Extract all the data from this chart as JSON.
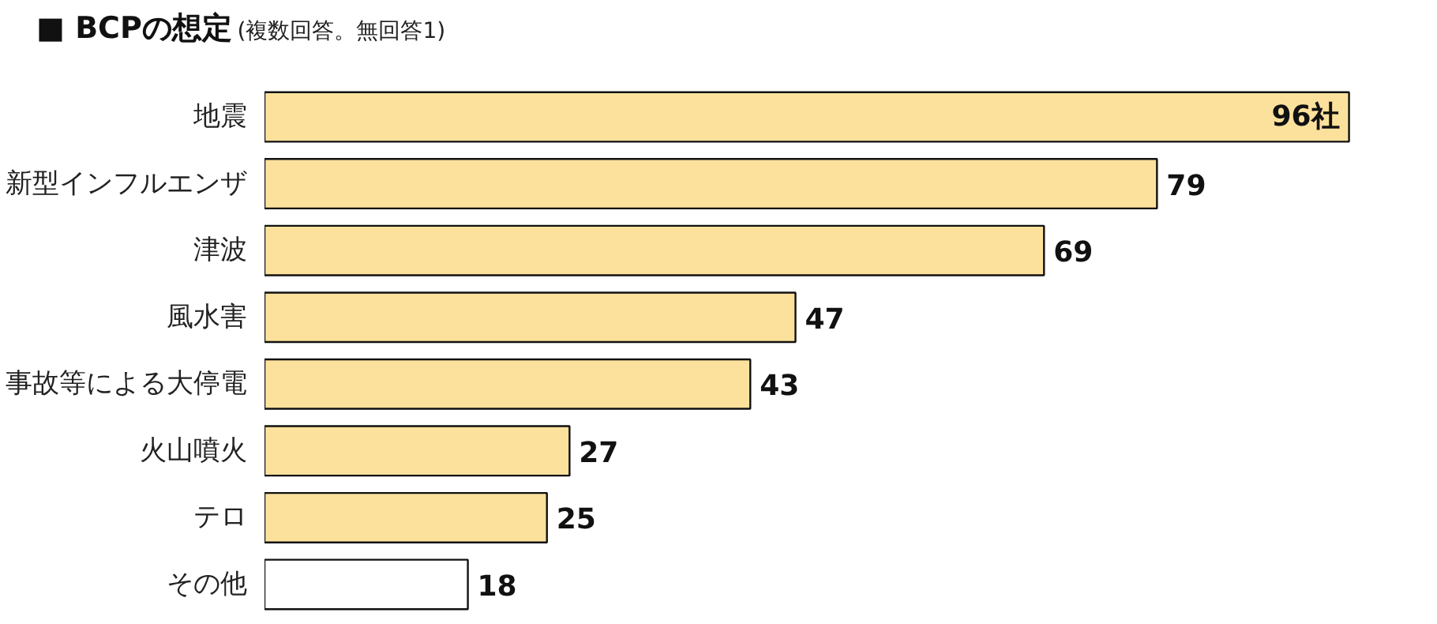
{
  "chart_data": {
    "type": "bar",
    "orientation": "horizontal",
    "title": "■ BCPの想定",
    "subtitle": "(複数回答。無回答1)",
    "categories": [
      "地震",
      "新型インフルエンザ",
      "津波",
      "風水害",
      "事故等による大停電",
      "火山噴火",
      "テロ",
      "その他"
    ],
    "values": [
      96,
      79,
      69,
      47,
      43,
      27,
      25,
      18
    ],
    "value_labels": [
      "96社",
      "79",
      "69",
      "47",
      "43",
      "27",
      "25",
      "18"
    ],
    "colors": [
      "#fce19d",
      "#fce19d",
      "#fce19d",
      "#fce19d",
      "#fce19d",
      "#fce19d",
      "#fce19d",
      "#ffffff"
    ],
    "grid": false
  }
}
